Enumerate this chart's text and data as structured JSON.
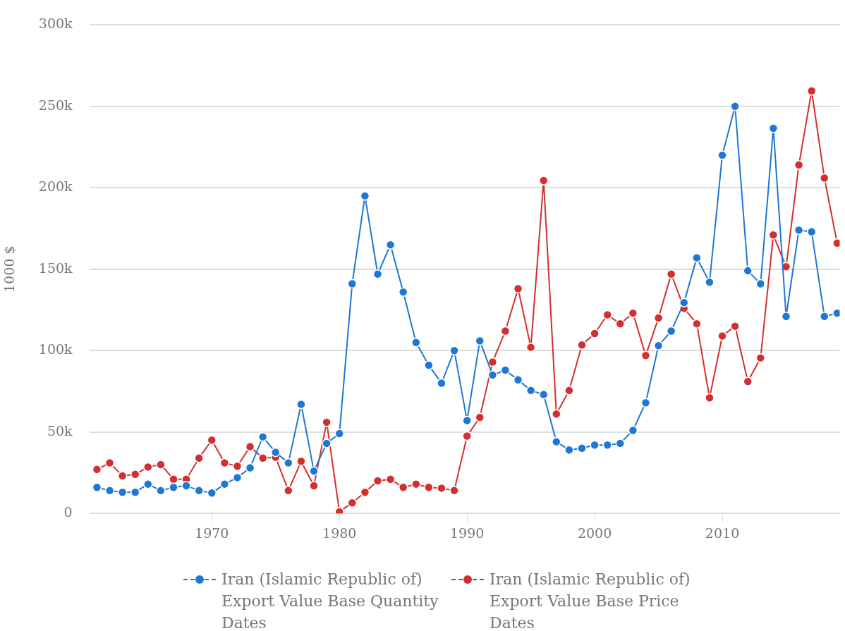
{
  "chart_data": {
    "type": "line",
    "ylabel": "1000 $",
    "marker": "circle",
    "line_style": "solid",
    "grid": "y",
    "legend": "bottom",
    "x": [
      1961,
      1962,
      1963,
      1964,
      1965,
      1966,
      1967,
      1968,
      1969,
      1970,
      1971,
      1972,
      1973,
      1974,
      1975,
      1976,
      1977,
      1978,
      1979,
      1980,
      1981,
      1982,
      1983,
      1984,
      1985,
      1986,
      1987,
      1988,
      1989,
      1990,
      1991,
      1992,
      1993,
      1994,
      1995,
      1996,
      1997,
      1998,
      1999,
      2000,
      2001,
      2002,
      2003,
      2004,
      2005,
      2006,
      2007,
      2008,
      2009,
      2010,
      2011,
      2012,
      2013,
      2014,
      2015,
      2016,
      2017,
      2018,
      2019
    ],
    "xlim": [
      1960.4,
      2019.2
    ],
    "xticks": [
      1970,
      1980,
      1990,
      2000,
      2010
    ],
    "ylim": [
      0,
      300000
    ],
    "yticks": [
      {
        "value": 0,
        "label": "0"
      },
      {
        "value": 50000,
        "label": "50k"
      },
      {
        "value": 100000,
        "label": "100k"
      },
      {
        "value": 150000,
        "label": "150k"
      },
      {
        "value": 200000,
        "label": "200k"
      },
      {
        "value": 250000,
        "label": "250k"
      },
      {
        "value": 300000,
        "label": "300k"
      }
    ],
    "series": [
      {
        "name": "Iran (Islamic Republic of) Export Value Base Quantity Dates",
        "color": "#1f77d4",
        "values": [
          16000,
          14000,
          13000,
          13000,
          18000,
          14000,
          16000,
          17000,
          14000,
          12500,
          18000,
          22000,
          28000,
          47000,
          37500,
          31000,
          67000,
          26000,
          43000,
          49000,
          141000,
          195000,
          147000,
          165000,
          136000,
          105000,
          91000,
          80000,
          100000,
          57000,
          106000,
          85000,
          88000,
          82000,
          75500,
          73000,
          44000,
          39000,
          40000,
          42000,
          42000,
          43000,
          51000,
          68000,
          103000,
          112000,
          129500,
          157000,
          142000,
          220000,
          250000,
          149000,
          141000,
          236500,
          121000,
          174000,
          173000,
          121000,
          123000
        ]
      },
      {
        "name": "Iran (Islamic Republic of) Export Value Base Price Dates",
        "color": "#d32f2f",
        "values": [
          27000,
          31000,
          23000,
          24000,
          28500,
          30000,
          21000,
          21000,
          34000,
          45000,
          31000,
          29000,
          41000,
          34000,
          34500,
          14000,
          32000,
          17000,
          56000,
          1000,
          6500,
          13000,
          20000,
          21000,
          16000,
          18000,
          16000,
          15500,
          14000,
          47500,
          59000,
          93000,
          112000,
          138000,
          102000,
          204500,
          61000,
          75500,
          103500,
          110500,
          122000,
          116500,
          123000,
          97000,
          120000,
          147000,
          126000,
          116500,
          71000,
          109000,
          115000,
          81000,
          95500,
          171000,
          151500,
          214000,
          259500,
          206000,
          166000
        ]
      }
    ]
  }
}
